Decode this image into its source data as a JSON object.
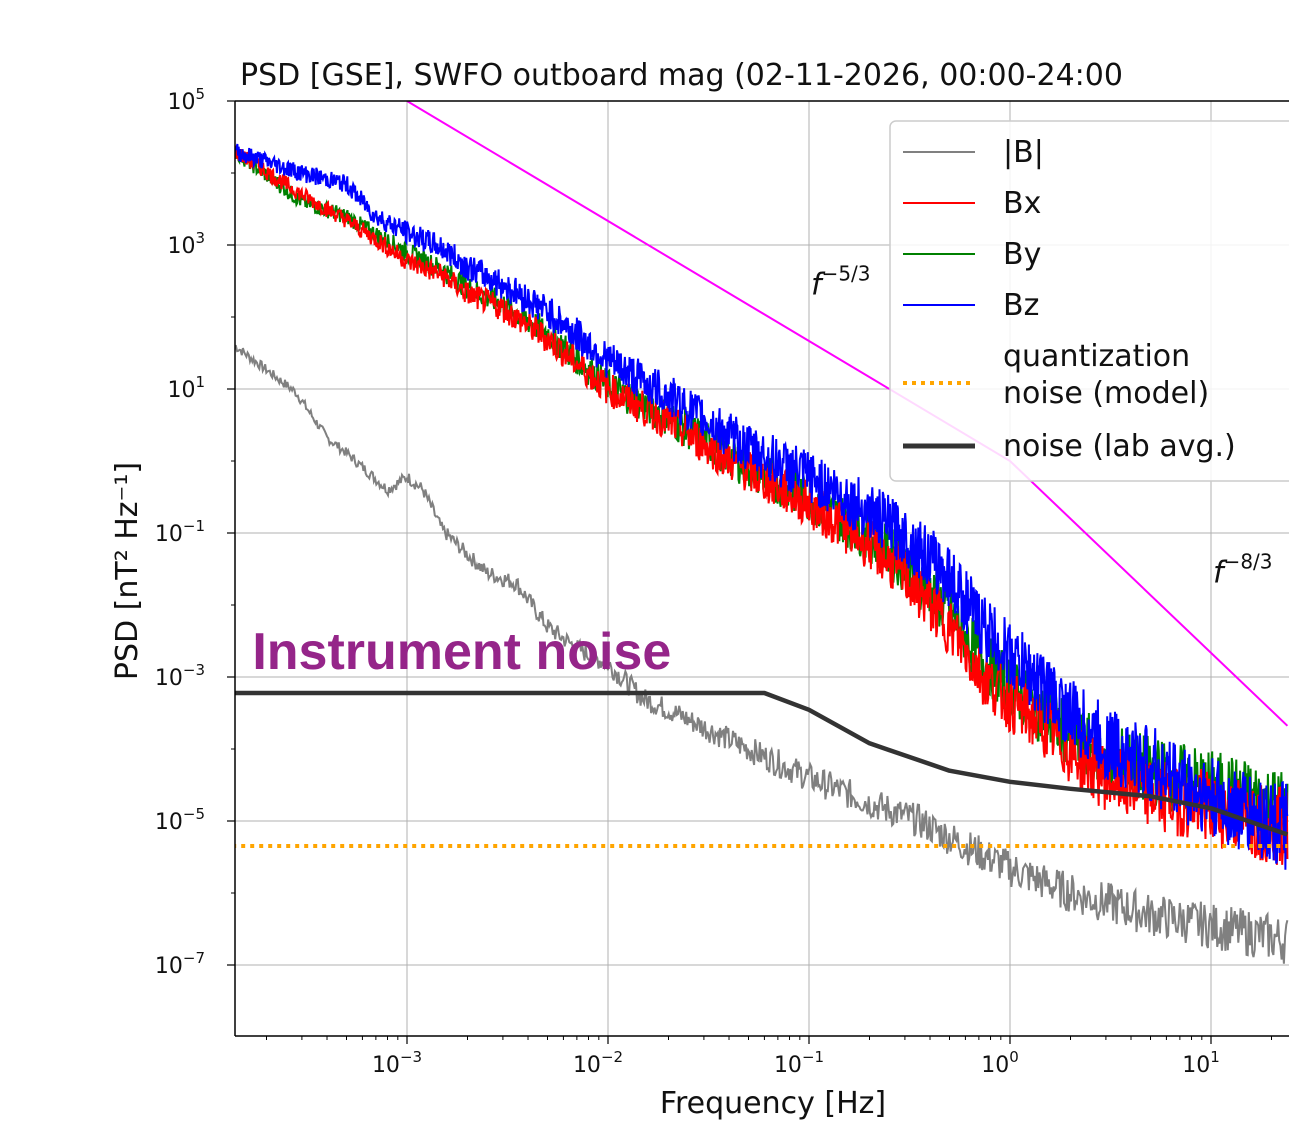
{
  "chart_data": {
    "type": "line",
    "title": "PSD [GSE], SWFO outboard mag (02-11-2026, 00:00-24:00",
    "xlabel": "Frequency [Hz]",
    "ylabel": "PSD [nT² Hz⁻¹]",
    "xscale": "log",
    "yscale": "log",
    "xlim": [
      0.000135,
      24
    ],
    "ylim": [
      1e-07,
      1000000.0
    ],
    "grid": true,
    "xticks": [
      0.001,
      0.01,
      0.1,
      1,
      10
    ],
    "yticks": [
      1e-07,
      1e-05,
      0.001,
      0.1,
      10,
      1000,
      100000
    ],
    "legend_placement": "top-right",
    "colors": {
      "B_mag": "#808080",
      "Bx": "#ff0000",
      "By": "#008000",
      "Bz": "#0000ff",
      "quantization": "#ffa500",
      "lab_noise": "#333333",
      "power_law": "#ff00ff",
      "annotation": "#952589"
    },
    "series": [
      {
        "name": "|B|",
        "x": [
          0.000139,
          0.00028,
          0.0004,
          0.0005,
          0.0008,
          0.001,
          0.0012,
          0.0015,
          0.002,
          0.0025,
          0.0035,
          0.005,
          0.007,
          0.01,
          0.015,
          0.02,
          0.03,
          0.05,
          0.1,
          0.2,
          0.35,
          0.6,
          1,
          2,
          5,
          10,
          24
        ],
        "y": [
          40,
          9,
          2.1,
          1.3,
          0.4,
          0.6,
          0.4,
          0.11,
          0.05,
          0.028,
          0.02,
          0.005,
          0.0025,
          0.0015,
          0.0005,
          0.00035,
          0.0002,
          0.0001,
          4e-05,
          1.8e-05,
          1e-05,
          4.5e-06,
          2.2e-06,
          1e-06,
          5e-07,
          3.5e-07,
          2.2e-07
        ]
      },
      {
        "name": "Bx",
        "x": [
          0.000139,
          0.0003,
          0.0005,
          0.0007,
          0.001,
          0.0015,
          0.002,
          0.003,
          0.005,
          0.01,
          0.02,
          0.05,
          0.1,
          0.2,
          0.3,
          0.5,
          0.7,
          1,
          1.5,
          2,
          3,
          5,
          10,
          24
        ],
        "y": [
          20000,
          5000,
          2200,
          1200,
          600,
          380,
          210,
          130,
          50,
          10,
          3.5,
          0.7,
          0.25,
          0.07,
          0.025,
          0.005,
          0.0012,
          0.00045,
          0.0002,
          9.4e-05,
          4e-05,
          2.4e-05,
          1.5e-05,
          8e-06
        ]
      },
      {
        "name": "By",
        "x": [
          0.000139,
          0.0003,
          0.0005,
          0.0007,
          0.001,
          0.0015,
          0.002,
          0.003,
          0.005,
          0.01,
          0.02,
          0.05,
          0.1,
          0.2,
          0.3,
          0.5,
          0.7,
          1,
          1.5,
          2,
          3,
          5,
          10,
          24
        ],
        "y": [
          20000,
          4000,
          2500,
          1400,
          800,
          450,
          260,
          150,
          60,
          11,
          4,
          0.8,
          0.3,
          0.09,
          0.035,
          0.008,
          0.002,
          0.0007,
          0.0003,
          0.00015,
          8e-05,
          5e-05,
          3e-05,
          1.5e-05
        ]
      },
      {
        "name": "Bz",
        "x": [
          0.000139,
          0.0003,
          0.0005,
          0.0007,
          0.001,
          0.0015,
          0.002,
          0.003,
          0.005,
          0.01,
          0.02,
          0.05,
          0.1,
          0.2,
          0.3,
          0.5,
          0.7,
          1,
          1.5,
          2,
          3,
          5,
          10,
          24
        ],
        "y": [
          20000,
          10000,
          7000,
          2500,
          1500,
          900,
          500,
          280,
          120,
          25,
          8,
          1.5,
          0.6,
          0.2,
          0.09,
          0.025,
          0.006,
          0.002,
          0.0007,
          0.0003,
          0.00012,
          6e-05,
          2e-05,
          8e-06
        ]
      },
      {
        "name": "quantization noise (model)",
        "x": [
          0.000135,
          24
        ],
        "y": [
          4.5e-06,
          4.5e-06
        ]
      },
      {
        "name": "noise (lab avg.)",
        "x": [
          0.000135,
          0.06,
          0.1,
          0.2,
          0.5,
          1,
          2,
          5,
          10,
          24
        ],
        "y": [
          0.0006,
          0.0006,
          0.00035,
          0.00012,
          5e-05,
          3.5e-05,
          2.8e-05,
          2.2e-05,
          1.5e-05,
          6.5e-06
        ]
      },
      {
        "x": [
          0.001,
          1,
          24
        ],
        "y": [
          100000,
          1,
          0.00021
        ]
      }
    ],
    "annotations": [
      {
        "text": "f",
        "sup": "−5/3",
        "x": 0.1,
        "y": 300
      },
      {
        "text": "f",
        "sup": "−8/3",
        "x": 10,
        "y": 0.03
      },
      {
        "text": "Instrument noise",
        "x": 0.00017,
        "y": 0.0013
      }
    ]
  }
}
